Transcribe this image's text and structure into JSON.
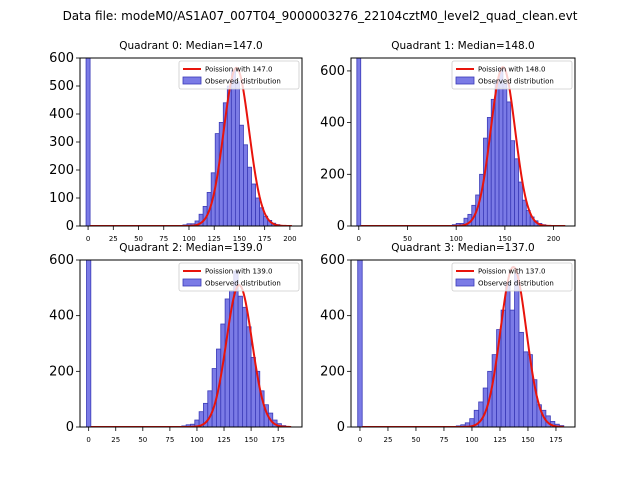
{
  "figure": {
    "suptitle": "Data file: modeM0/AS1A07_007T04_9000003276_22104cztM0_level2_quad_clean.evt"
  },
  "colors": {
    "bar_fill": "#7B7BE6",
    "bar_edge": "#3B3BB8",
    "poisson_line": "#E8140C",
    "axis": "#000000"
  },
  "legend": {
    "observed_label": "Observed distribution"
  },
  "chart_data": [
    {
      "type": "bar",
      "title": "Quadrant 0: Median=147.0",
      "median": 147.0,
      "poisson_label": "Poission with 147.0",
      "xlim": [
        -8,
        212
      ],
      "ylim": [
        0,
        600
      ],
      "xticks": [
        0,
        25,
        50,
        75,
        100,
        125,
        150,
        175,
        200
      ],
      "yticks": [
        0,
        100,
        200,
        300,
        400,
        500,
        600
      ],
      "bin_width": 4,
      "zero_bar": 600,
      "bins": [
        {
          "x": 96,
          "v": 4
        },
        {
          "x": 100,
          "v": 8
        },
        {
          "x": 104,
          "v": 8
        },
        {
          "x": 108,
          "v": 18
        },
        {
          "x": 112,
          "v": 42
        },
        {
          "x": 116,
          "v": 70
        },
        {
          "x": 120,
          "v": 120
        },
        {
          "x": 124,
          "v": 190
        },
        {
          "x": 128,
          "v": 330
        },
        {
          "x": 132,
          "v": 370
        },
        {
          "x": 136,
          "v": 440
        },
        {
          "x": 140,
          "v": 500
        },
        {
          "x": 144,
          "v": 555
        },
        {
          "x": 148,
          "v": 515
        },
        {
          "x": 152,
          "v": 360
        },
        {
          "x": 156,
          "v": 290
        },
        {
          "x": 160,
          "v": 210
        },
        {
          "x": 164,
          "v": 150
        },
        {
          "x": 168,
          "v": 100
        },
        {
          "x": 172,
          "v": 65
        },
        {
          "x": 176,
          "v": 35
        },
        {
          "x": 180,
          "v": 20
        },
        {
          "x": 184,
          "v": 10
        },
        {
          "x": 188,
          "v": 5
        }
      ],
      "curve": {
        "peak": 565,
        "sigma": 12.5,
        "x_start": 2,
        "x_end": 202
      }
    },
    {
      "type": "bar",
      "title": "Quadrant 1: Median=148.0",
      "median": 148.0,
      "poisson_label": "Poission with 148.0",
      "xlim": [
        -8,
        222
      ],
      "ylim": [
        0,
        650
      ],
      "xticks": [
        0,
        50,
        100,
        150,
        200
      ],
      "yticks": [
        0,
        200,
        400,
        600
      ],
      "bin_width": 4,
      "zero_bar": 650,
      "bins": [
        {
          "x": 98,
          "v": 5
        },
        {
          "x": 102,
          "v": 10
        },
        {
          "x": 106,
          "v": 10
        },
        {
          "x": 110,
          "v": 30
        },
        {
          "x": 114,
          "v": 45
        },
        {
          "x": 118,
          "v": 80
        },
        {
          "x": 122,
          "v": 120
        },
        {
          "x": 126,
          "v": 200
        },
        {
          "x": 130,
          "v": 340
        },
        {
          "x": 134,
          "v": 420
        },
        {
          "x": 138,
          "v": 490
        },
        {
          "x": 142,
          "v": 560
        },
        {
          "x": 146,
          "v": 610
        },
        {
          "x": 150,
          "v": 550
        },
        {
          "x": 154,
          "v": 480
        },
        {
          "x": 158,
          "v": 330
        },
        {
          "x": 162,
          "v": 260
        },
        {
          "x": 166,
          "v": 170
        },
        {
          "x": 170,
          "v": 100
        },
        {
          "x": 174,
          "v": 60
        },
        {
          "x": 178,
          "v": 35
        },
        {
          "x": 182,
          "v": 20
        },
        {
          "x": 186,
          "v": 10
        },
        {
          "x": 190,
          "v": 5
        }
      ],
      "curve": {
        "peak": 615,
        "sigma": 12.5,
        "x_start": 2,
        "x_end": 212
      }
    },
    {
      "type": "bar",
      "title": "Quadrant 2: Median=139.0",
      "median": 139.0,
      "poisson_label": "Poission with 139.0",
      "xlim": [
        -8,
        197
      ],
      "ylim": [
        0,
        600
      ],
      "xticks": [
        0,
        25,
        50,
        75,
        100,
        125,
        150,
        175
      ],
      "yticks": [
        0,
        200,
        400,
        600
      ],
      "bin_width": 4,
      "zero_bar": 600,
      "bins": [
        {
          "x": 88,
          "v": 4
        },
        {
          "x": 92,
          "v": 8
        },
        {
          "x": 96,
          "v": 10
        },
        {
          "x": 100,
          "v": 25
        },
        {
          "x": 104,
          "v": 55
        },
        {
          "x": 108,
          "v": 85
        },
        {
          "x": 112,
          "v": 130
        },
        {
          "x": 116,
          "v": 210
        },
        {
          "x": 120,
          "v": 280
        },
        {
          "x": 124,
          "v": 370
        },
        {
          "x": 128,
          "v": 460
        },
        {
          "x": 132,
          "v": 490
        },
        {
          "x": 136,
          "v": 560
        },
        {
          "x": 140,
          "v": 470
        },
        {
          "x": 144,
          "v": 430
        },
        {
          "x": 148,
          "v": 360
        },
        {
          "x": 152,
          "v": 250
        },
        {
          "x": 156,
          "v": 200
        },
        {
          "x": 160,
          "v": 130
        },
        {
          "x": 164,
          "v": 80
        },
        {
          "x": 168,
          "v": 50
        },
        {
          "x": 172,
          "v": 25
        },
        {
          "x": 176,
          "v": 12
        },
        {
          "x": 180,
          "v": 5
        }
      ],
      "curve": {
        "peak": 510,
        "sigma": 11.8,
        "x_start": 2,
        "x_end": 187
      }
    },
    {
      "type": "bar",
      "title": "Quadrant 3: Median=137.0",
      "median": 137.0,
      "poisson_label": "Poission with 137.0",
      "xlim": [
        -8,
        192
      ],
      "ylim": [
        0,
        600
      ],
      "xticks": [
        0,
        25,
        50,
        75,
        100,
        125,
        150,
        175
      ],
      "yticks": [
        0,
        200,
        400,
        600
      ],
      "bin_width": 4,
      "zero_bar": 600,
      "bins": [
        {
          "x": 88,
          "v": 4
        },
        {
          "x": 92,
          "v": 8
        },
        {
          "x": 96,
          "v": 15
        },
        {
          "x": 100,
          "v": 30
        },
        {
          "x": 104,
          "v": 60
        },
        {
          "x": 108,
          "v": 90
        },
        {
          "x": 112,
          "v": 140
        },
        {
          "x": 116,
          "v": 200
        },
        {
          "x": 120,
          "v": 260
        },
        {
          "x": 124,
          "v": 350
        },
        {
          "x": 128,
          "v": 420
        },
        {
          "x": 132,
          "v": 520
        },
        {
          "x": 136,
          "v": 420
        },
        {
          "x": 140,
          "v": 550
        },
        {
          "x": 144,
          "v": 340
        },
        {
          "x": 148,
          "v": 270
        },
        {
          "x": 152,
          "v": 260
        },
        {
          "x": 156,
          "v": 170
        },
        {
          "x": 160,
          "v": 80
        },
        {
          "x": 164,
          "v": 60
        },
        {
          "x": 168,
          "v": 40
        },
        {
          "x": 172,
          "v": 20
        },
        {
          "x": 176,
          "v": 10
        },
        {
          "x": 180,
          "v": 5
        }
      ],
      "curve": {
        "peak": 575,
        "sigma": 11.5,
        "x_start": 2,
        "x_end": 182
      }
    }
  ]
}
